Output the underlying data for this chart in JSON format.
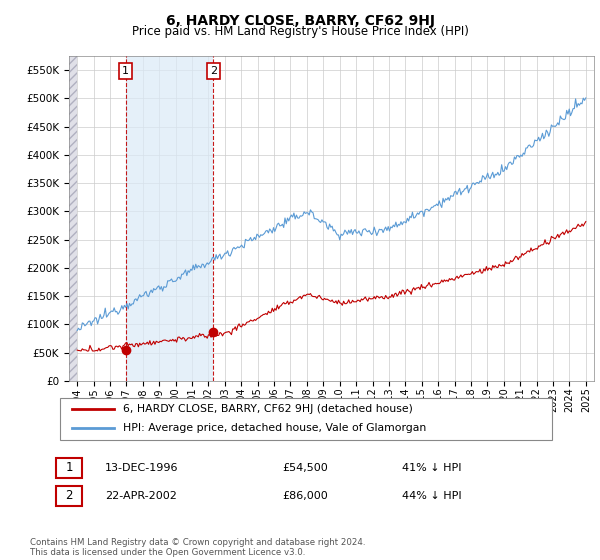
{
  "title": "6, HARDY CLOSE, BARRY, CF62 9HJ",
  "subtitle": "Price paid vs. HM Land Registry's House Price Index (HPI)",
  "footer": "Contains HM Land Registry data © Crown copyright and database right 2024.\nThis data is licensed under the Open Government Licence v3.0.",
  "legend_line1": "6, HARDY CLOSE, BARRY, CF62 9HJ (detached house)",
  "legend_line2": "HPI: Average price, detached house, Vale of Glamorgan",
  "annotation1_date": "13-DEC-1996",
  "annotation1_price": "£54,500",
  "annotation1_hpi": "41% ↓ HPI",
  "annotation2_date": "22-APR-2002",
  "annotation2_price": "£86,000",
  "annotation2_hpi": "44% ↓ HPI",
  "hpi_color": "#5b9bd5",
  "price_color": "#c00000",
  "annotation_color": "#c00000",
  "shade_color": "#dbeaf7",
  "ylim": [
    0,
    575000
  ],
  "yticks": [
    0,
    50000,
    100000,
    150000,
    200000,
    250000,
    300000,
    350000,
    400000,
    450000,
    500000,
    550000
  ],
  "t1_x": 1996.958,
  "t1_y": 54500,
  "t2_x": 2002.292,
  "t2_y": 86000,
  "hpi_start_year": 1994.0,
  "hpi_end_year": 2025.0,
  "xmin": 1993.5,
  "xmax": 2025.5
}
